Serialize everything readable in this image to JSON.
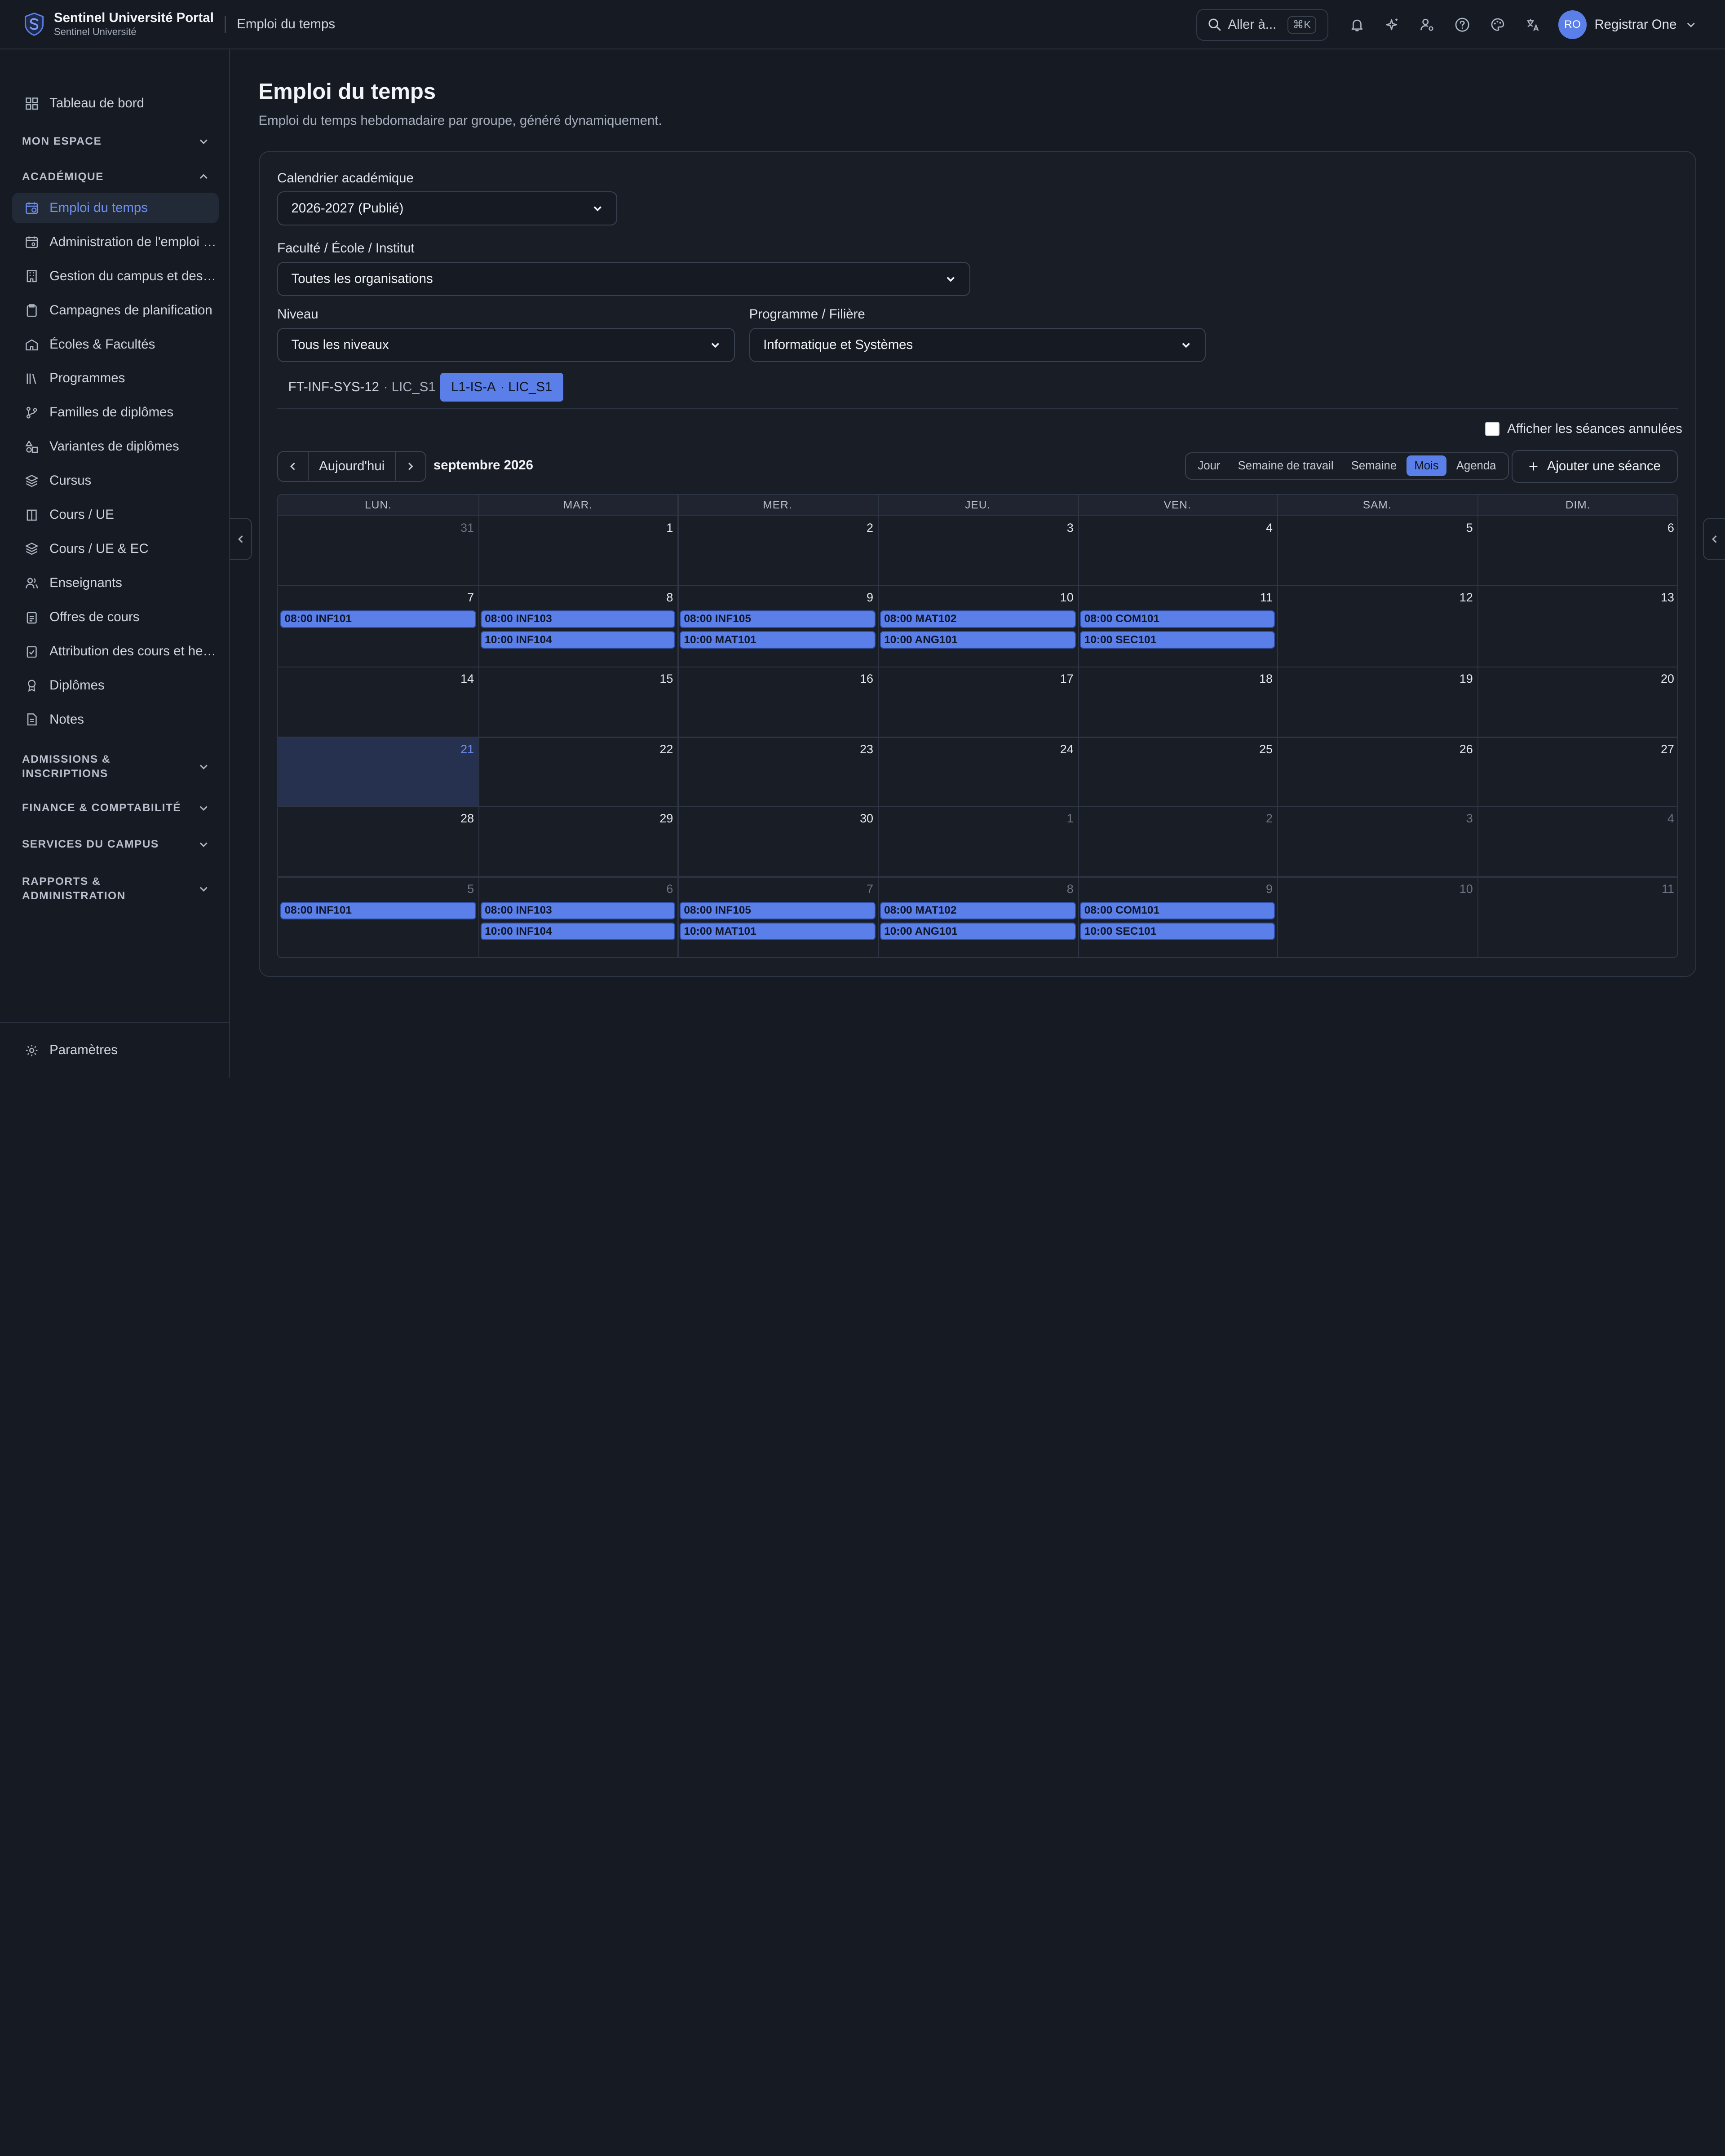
{
  "header": {
    "app_title": "Sentinel Université Portal",
    "app_subtitle": "Sentinel Université",
    "breadcrumb": "Emploi du temps",
    "search_label": "Aller à...",
    "search_shortcut": "⌘K",
    "user_initials": "RO",
    "user_name": "Registrar One"
  },
  "sidebar": {
    "dashboard": "Tableau de bord",
    "group_mon_espace": "MON ESPACE",
    "group_academique": "ACADÉMIQUE",
    "items": [
      {
        "label": "Emploi du temps",
        "icon": "calendar-clock-icon",
        "active": true
      },
      {
        "label": "Administration de l'emploi du temps",
        "icon": "calendar-cog-icon"
      },
      {
        "label": "Gestion du campus et des salles",
        "icon": "building-icon"
      },
      {
        "label": "Campagnes de planification",
        "icon": "clipboard-icon"
      },
      {
        "label": "Écoles & Facultés",
        "icon": "school-icon"
      },
      {
        "label": "Programmes",
        "icon": "library-icon"
      },
      {
        "label": "Familles de diplômes",
        "icon": "git-branch-icon"
      },
      {
        "label": "Variantes de diplômes",
        "icon": "shapes-icon"
      },
      {
        "label": "Cursus",
        "icon": "layers-icon"
      },
      {
        "label": "Cours / UE",
        "icon": "book-icon"
      },
      {
        "label": "Cours / UE & EC",
        "icon": "layers-icon"
      },
      {
        "label": "Enseignants",
        "icon": "users-icon"
      },
      {
        "label": "Offres de cours",
        "icon": "clipboard-list-icon"
      },
      {
        "label": "Attribution des cours et heures",
        "icon": "clipboard-check-icon"
      },
      {
        "label": "Diplômes",
        "icon": "award-icon"
      },
      {
        "label": "Notes",
        "icon": "file-text-icon"
      }
    ],
    "group_admissions": "ADMISSIONS & INSCRIPTIONS",
    "group_finance": "FINANCE & COMPTABILITÉ",
    "group_services": "SERVICES DU CAMPUS",
    "group_rapports": "RAPPORTS & ADMINISTRATION",
    "settings": "Paramètres"
  },
  "main": {
    "title": "Emploi du temps",
    "subtitle": "Emploi du temps hebdomadaire par groupe, généré dynamiquement.",
    "filters": {
      "calendar_label": "Calendrier académique",
      "calendar_value": "2026-2027 (Publié)",
      "faculty_label": "Faculté / École / Institut",
      "faculty_value": "Toutes les organisations",
      "level_label": "Niveau",
      "level_value": "Tous les niveaux",
      "program_label": "Programme / Filière",
      "program_value": "Informatique et Systèmes"
    },
    "group_tabs": [
      {
        "code": "FT-INF-SYS-12",
        "sub": "· LIC_S1",
        "active": false
      },
      {
        "code": "L1-IS-A",
        "sub": "· LIC_S1",
        "active": true
      }
    ],
    "show_cancelled_label": "Afficher les séances annulées",
    "today_button": "Aujourd'hui",
    "month_label": "septembre 2026",
    "views": [
      "Jour",
      "Semaine de travail",
      "Semaine",
      "Mois",
      "Agenda"
    ],
    "active_view": "Mois",
    "add_session_label": "Ajouter une séance"
  },
  "calendar": {
    "weekdays": [
      "LUN.",
      "MAR.",
      "MER.",
      "JEU.",
      "VEN.",
      "SAM.",
      "DIM."
    ],
    "weeks": [
      [
        {
          "d": "31",
          "m": true
        },
        {
          "d": "1"
        },
        {
          "d": "2"
        },
        {
          "d": "3"
        },
        {
          "d": "4"
        },
        {
          "d": "5"
        },
        {
          "d": "6"
        }
      ],
      [
        {
          "d": "7",
          "ev": [
            "08:00 INF101"
          ]
        },
        {
          "d": "8",
          "ev": [
            "08:00 INF103",
            "10:00 INF104"
          ]
        },
        {
          "d": "9",
          "ev": [
            "08:00 INF105",
            "10:00 MAT101"
          ]
        },
        {
          "d": "10",
          "ev": [
            "08:00 MAT102",
            "10:00 ANG101"
          ]
        },
        {
          "d": "11",
          "ev": [
            "08:00 COM101",
            "10:00 SEC101"
          ]
        },
        {
          "d": "12"
        },
        {
          "d": "13"
        }
      ],
      [
        {
          "d": "14"
        },
        {
          "d": "15"
        },
        {
          "d": "16"
        },
        {
          "d": "17"
        },
        {
          "d": "18"
        },
        {
          "d": "19"
        },
        {
          "d": "20"
        }
      ],
      [
        {
          "d": "21",
          "today": true
        },
        {
          "d": "22"
        },
        {
          "d": "23"
        },
        {
          "d": "24"
        },
        {
          "d": "25"
        },
        {
          "d": "26"
        },
        {
          "d": "27"
        }
      ],
      [
        {
          "d": "28"
        },
        {
          "d": "29"
        },
        {
          "d": "30"
        },
        {
          "d": "1",
          "m": true
        },
        {
          "d": "2",
          "m": true
        },
        {
          "d": "3",
          "m": true
        },
        {
          "d": "4",
          "m": true
        }
      ],
      [
        {
          "d": "5",
          "m": true,
          "ev": [
            "08:00 INF101"
          ]
        },
        {
          "d": "6",
          "m": true,
          "ev": [
            "08:00 INF103",
            "10:00 INF104"
          ]
        },
        {
          "d": "7",
          "m": true,
          "ev": [
            "08:00 INF105",
            "10:00 MAT101"
          ]
        },
        {
          "d": "8",
          "m": true,
          "ev": [
            "08:00 MAT102",
            "10:00 ANG101"
          ]
        },
        {
          "d": "9",
          "m": true,
          "ev": [
            "08:00 COM101",
            "10:00 SEC101"
          ]
        },
        {
          "d": "10",
          "m": true
        },
        {
          "d": "11",
          "m": true
        }
      ]
    ]
  },
  "colors": {
    "accent": "#5b7fe8",
    "background": "#161a22",
    "today_cell": "#263150"
  }
}
